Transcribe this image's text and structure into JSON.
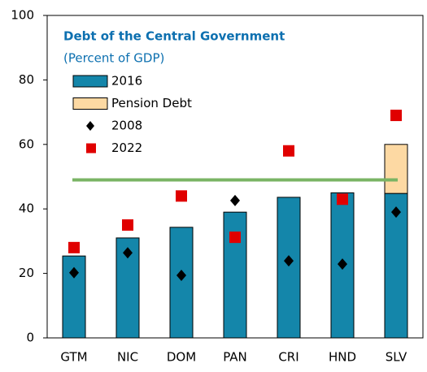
{
  "chart_data": {
    "type": "bar",
    "title": "Debt of the Central Government",
    "subtitle": "(Percent of GDP)",
    "categories": [
      "GTM",
      "NIC",
      "DOM",
      "PAN",
      "CRI",
      "HND",
      "SLV"
    ],
    "series": [
      {
        "name": "2016",
        "color": "#1486aa",
        "mark": "bar",
        "values": [
          25.4,
          31,
          34.3,
          39,
          43.6,
          45,
          44.8
        ]
      },
      {
        "name": "Pension Debt",
        "color": "#fdd9a3",
        "mark": "stacked-bar",
        "values": [
          null,
          null,
          null,
          null,
          null,
          null,
          15.2
        ]
      },
      {
        "name": "2008",
        "color": "#000000",
        "mark": "diamond",
        "values": [
          20.2,
          26.4,
          19.4,
          42.6,
          23.9,
          22.9,
          39
        ]
      },
      {
        "name": "2022",
        "color": "#e00000",
        "mark": "square",
        "values": [
          28,
          35,
          44,
          31.2,
          58,
          43,
          69
        ]
      }
    ],
    "reference_line": {
      "value": 49,
      "color": "#7ab464"
    },
    "ylim": [
      0,
      100
    ],
    "yticks": [
      0,
      20,
      40,
      60,
      80,
      100
    ],
    "grid": false
  }
}
